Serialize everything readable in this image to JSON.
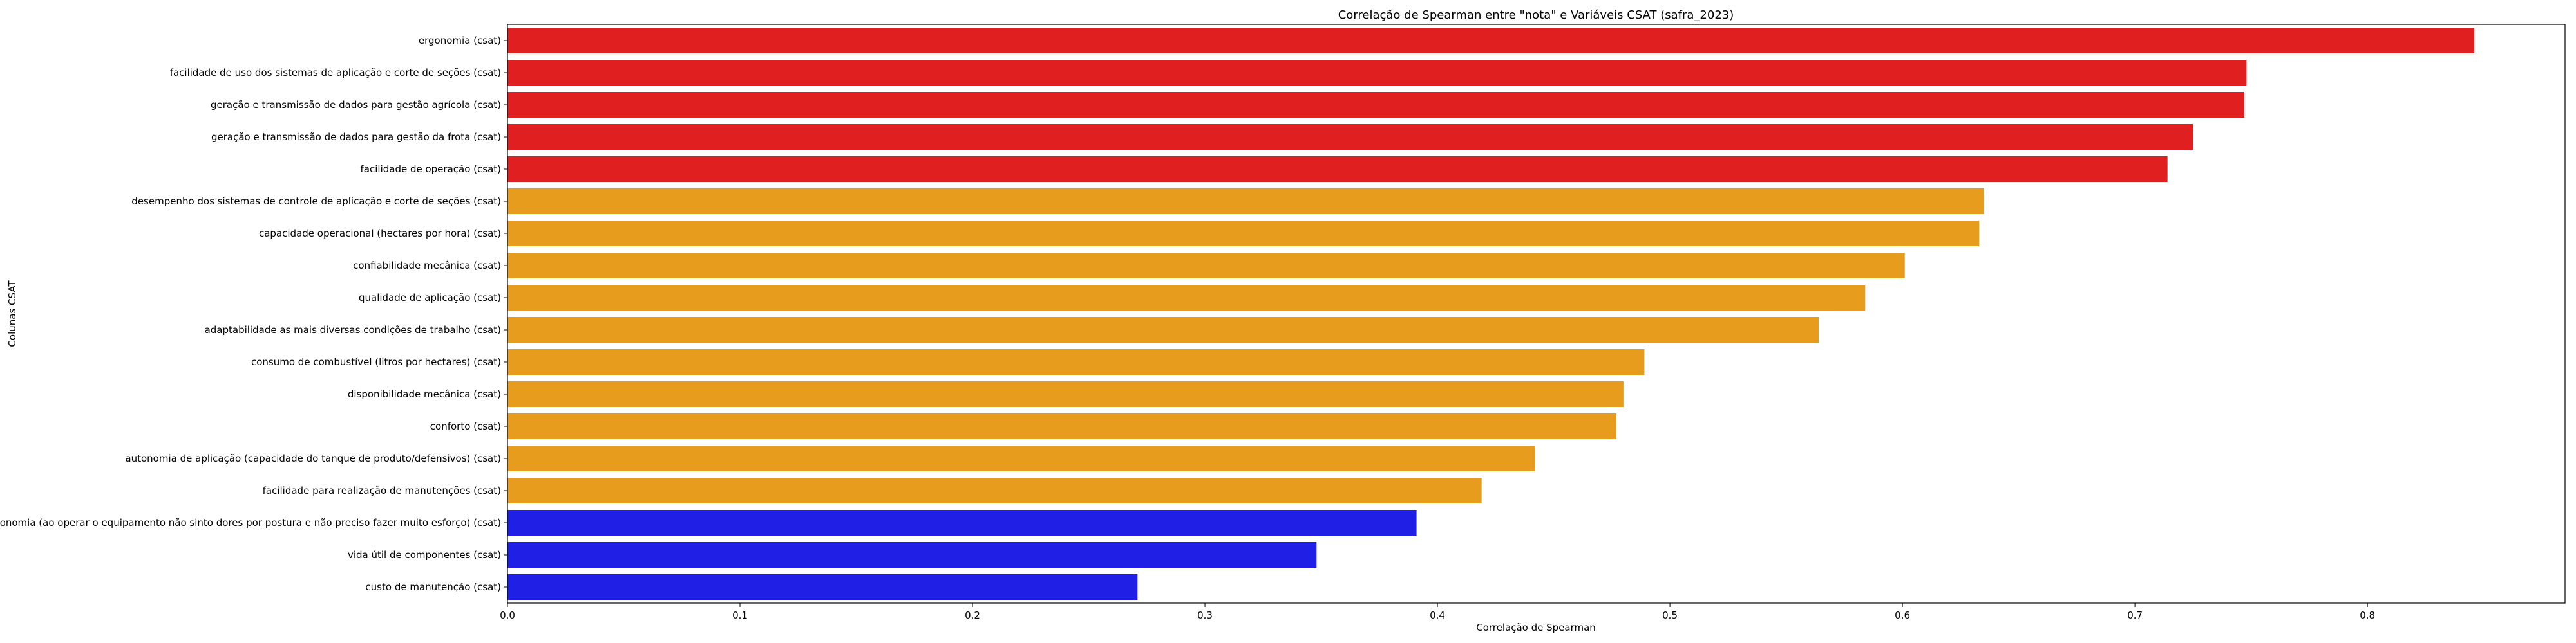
{
  "chart_data": {
    "type": "bar",
    "orientation": "horizontal",
    "title": "Correlação de Spearman entre \"nota\" e Variáveis CSAT (safra_2023)",
    "xlabel": "Correlação de Spearman",
    "ylabel": "Colunas CSAT",
    "xlim": [
      0,
      0.885
    ],
    "xticks": [
      "0.0",
      "0.1",
      "0.2",
      "0.3",
      "0.4",
      "0.5",
      "0.6",
      "0.7",
      "0.8"
    ],
    "grid": false,
    "legend": "none",
    "categories": [
      "ergonomia (csat)",
      "facilidade de uso dos sistemas de aplicação e corte de seções (csat)",
      "geração e transmissão de dados para gestão agrícola (csat)",
      "geração e transmissão de dados para gestão da frota (csat)",
      "facilidade de operação (csat)",
      "desempenho dos sistemas de controle de aplicação e corte de seções (csat)",
      "capacidade operacional (hectares por hora) (csat)",
      "confiabilidade mecânica (csat)",
      "qualidade de aplicação (csat)",
      "adaptabilidade as mais diversas condições de trabalho (csat)",
      "consumo de combustível (litros por hectares) (csat)",
      "disponibilidade mecânica (csat)",
      "conforto (csat)",
      "autonomia de aplicação (capacidade do tanque de produto/defensivos) (csat)",
      "facilidade para realização de manutenções (csat)",
      "ergonomia (ao operar o equipamento não sinto dores por postura e não preciso fazer muito esforço) (csat)",
      "vida útil de componentes (csat)",
      "custo de manutenção (csat)"
    ],
    "values": [
      0.846,
      0.748,
      0.747,
      0.725,
      0.714,
      0.635,
      0.633,
      0.601,
      0.584,
      0.564,
      0.489,
      0.48,
      0.477,
      0.442,
      0.419,
      0.391,
      0.348,
      0.271
    ],
    "bar_colors": [
      "#e02020",
      "#e02020",
      "#e02020",
      "#e02020",
      "#e02020",
      "#e89c1e",
      "#e89c1e",
      "#e89c1e",
      "#e89c1e",
      "#e89c1e",
      "#e89c1e",
      "#e89c1e",
      "#e89c1e",
      "#e89c1e",
      "#e89c1e",
      "#1f1fe6",
      "#1f1fe6",
      "#1f1fe6"
    ]
  }
}
